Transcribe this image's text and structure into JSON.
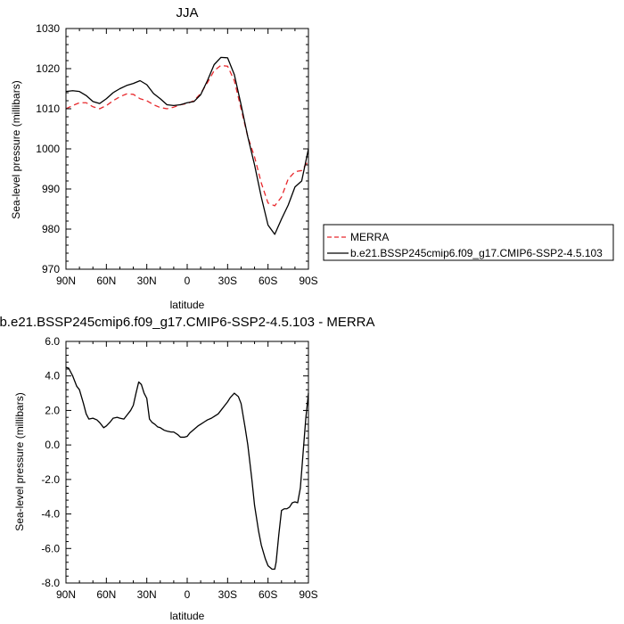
{
  "chart_data": [
    {
      "type": "line",
      "title": "JJA",
      "xlabel": "latitude",
      "ylabel": "Sea-level pressure (millibars)",
      "xlim": [
        90,
        -90
      ],
      "ylim": [
        970,
        1030
      ],
      "x_ticks": [
        90,
        60,
        30,
        0,
        -30,
        -60,
        -90
      ],
      "x_tick_labels": [
        "90N",
        "60N",
        "30N",
        "0",
        "30S",
        "60S",
        "90S"
      ],
      "y_ticks": [
        970,
        980,
        990,
        1000,
        1010,
        1020,
        1030
      ],
      "y_tick_labels": [
        "970",
        "980",
        "990",
        "1000",
        "1010",
        "1020",
        "1030"
      ],
      "legend_position": "right",
      "series": [
        {
          "name": "MERRA",
          "color": "#e8292d",
          "dash": "dashed",
          "x": [
            90,
            85,
            80,
            75,
            70,
            65,
            60,
            55,
            50,
            45,
            40,
            35,
            30,
            25,
            20,
            15,
            10,
            5,
            0,
            -5,
            -10,
            -15,
            -20,
            -25,
            -30,
            -35,
            -40,
            -45,
            -50,
            -55,
            -60,
            -65,
            -70,
            -75,
            -80,
            -85,
            -90
          ],
          "y": [
            1010,
            1010.8,
            1011.5,
            1011.5,
            1010.5,
            1010,
            1010.8,
            1012,
            1013,
            1013.7,
            1013.6,
            1012.5,
            1012,
            1011,
            1010.3,
            1010,
            1010.4,
            1011,
            1011.3,
            1012,
            1013.8,
            1016.5,
            1019.5,
            1020.8,
            1020.6,
            1017,
            1010,
            1003,
            998,
            991.5,
            986.5,
            985.8,
            988,
            992.5,
            994.3,
            994.6,
            997
          ]
        },
        {
          "name": "b.e21.BSSP245cmip6.f09_g17.CMIP6-SSP2-4.5.103",
          "color": "#000000",
          "dash": "solid",
          "x": [
            90,
            85,
            80,
            75,
            70,
            65,
            60,
            55,
            50,
            45,
            40,
            35,
            30,
            25,
            20,
            15,
            10,
            5,
            0,
            -5,
            -10,
            -15,
            -20,
            -25,
            -30,
            -35,
            -40,
            -45,
            -50,
            -55,
            -60,
            -65,
            -70,
            -75,
            -80,
            -85,
            -90
          ],
          "y": [
            1014.3,
            1014.5,
            1014.3,
            1013.3,
            1011.8,
            1011.3,
            1012.5,
            1014,
            1015,
            1015.8,
            1016.3,
            1017,
            1016,
            1013.8,
            1012.5,
            1011,
            1010.8,
            1011,
            1011.5,
            1011.8,
            1013.5,
            1017,
            1021,
            1022.8,
            1022.7,
            1018.5,
            1011,
            1003,
            996,
            988,
            981,
            978.7,
            982.5,
            986,
            990.5,
            992,
            1000
          ]
        }
      ]
    },
    {
      "type": "line",
      "title": "b.e21.BSSP245cmip6.f09_g17.CMIP6-SSP2-4.5.103 - MERRA",
      "xlabel": "latitude",
      "ylabel": "Sea-level pressure (millibars)",
      "xlim": [
        90,
        -90
      ],
      "ylim": [
        -8,
        6
      ],
      "x_ticks": [
        90,
        60,
        30,
        0,
        -30,
        -60,
        -90
      ],
      "x_tick_labels": [
        "90N",
        "60N",
        "30N",
        "0",
        "30S",
        "60S",
        "90S"
      ],
      "y_ticks": [
        -8,
        -6,
        -4,
        -2,
        0,
        2,
        4,
        6
      ],
      "y_tick_labels": [
        "-8.0",
        "-6.0",
        "-4.0",
        "-2.0",
        "0.0",
        "2.0",
        "4.0",
        "6.0"
      ],
      "series": [
        {
          "color": "#000000",
          "dash": "solid",
          "x": [
            90,
            88,
            85,
            82,
            80,
            77,
            75,
            73,
            70,
            67,
            65,
            62,
            60,
            57,
            55,
            52,
            50,
            47,
            45,
            42,
            40,
            38,
            36,
            34,
            32,
            30,
            28,
            26,
            24,
            22,
            20,
            17,
            15,
            12,
            10,
            7,
            5,
            2,
            0,
            -2,
            -5,
            -8,
            -10,
            -13,
            -15,
            -18,
            -20,
            -23,
            -25,
            -28,
            -30,
            -32,
            -35,
            -38,
            -40,
            -43,
            -45,
            -48,
            -50,
            -53,
            -55,
            -58,
            -60,
            -63,
            -65,
            -66,
            -68,
            -70,
            -72,
            -74,
            -76,
            -78,
            -80,
            -82,
            -84,
            -86,
            -88,
            -90
          ],
          "y": [
            4.5,
            4.45,
            4.0,
            3.4,
            3.2,
            2.4,
            1.8,
            1.5,
            1.55,
            1.45,
            1.3,
            1.0,
            1.1,
            1.35,
            1.55,
            1.6,
            1.55,
            1.5,
            1.7,
            2.0,
            2.3,
            3.0,
            3.65,
            3.5,
            3.0,
            2.7,
            1.5,
            1.3,
            1.2,
            1.05,
            1.0,
            0.85,
            0.8,
            0.75,
            0.75,
            0.6,
            0.45,
            0.45,
            0.5,
            0.7,
            0.9,
            1.1,
            1.2,
            1.35,
            1.45,
            1.55,
            1.65,
            1.8,
            2.0,
            2.3,
            2.5,
            2.75,
            3.0,
            2.8,
            2.4,
            1.0,
            0.0,
            -2.0,
            -3.5,
            -5.0,
            -5.8,
            -6.6,
            -7.0,
            -7.2,
            -7.2,
            -6.8,
            -5.2,
            -3.8,
            -3.7,
            -3.7,
            -3.6,
            -3.35,
            -3.3,
            -3.35,
            -2.5,
            -0.5,
            1.5,
            3.0
          ]
        }
      ]
    }
  ]
}
